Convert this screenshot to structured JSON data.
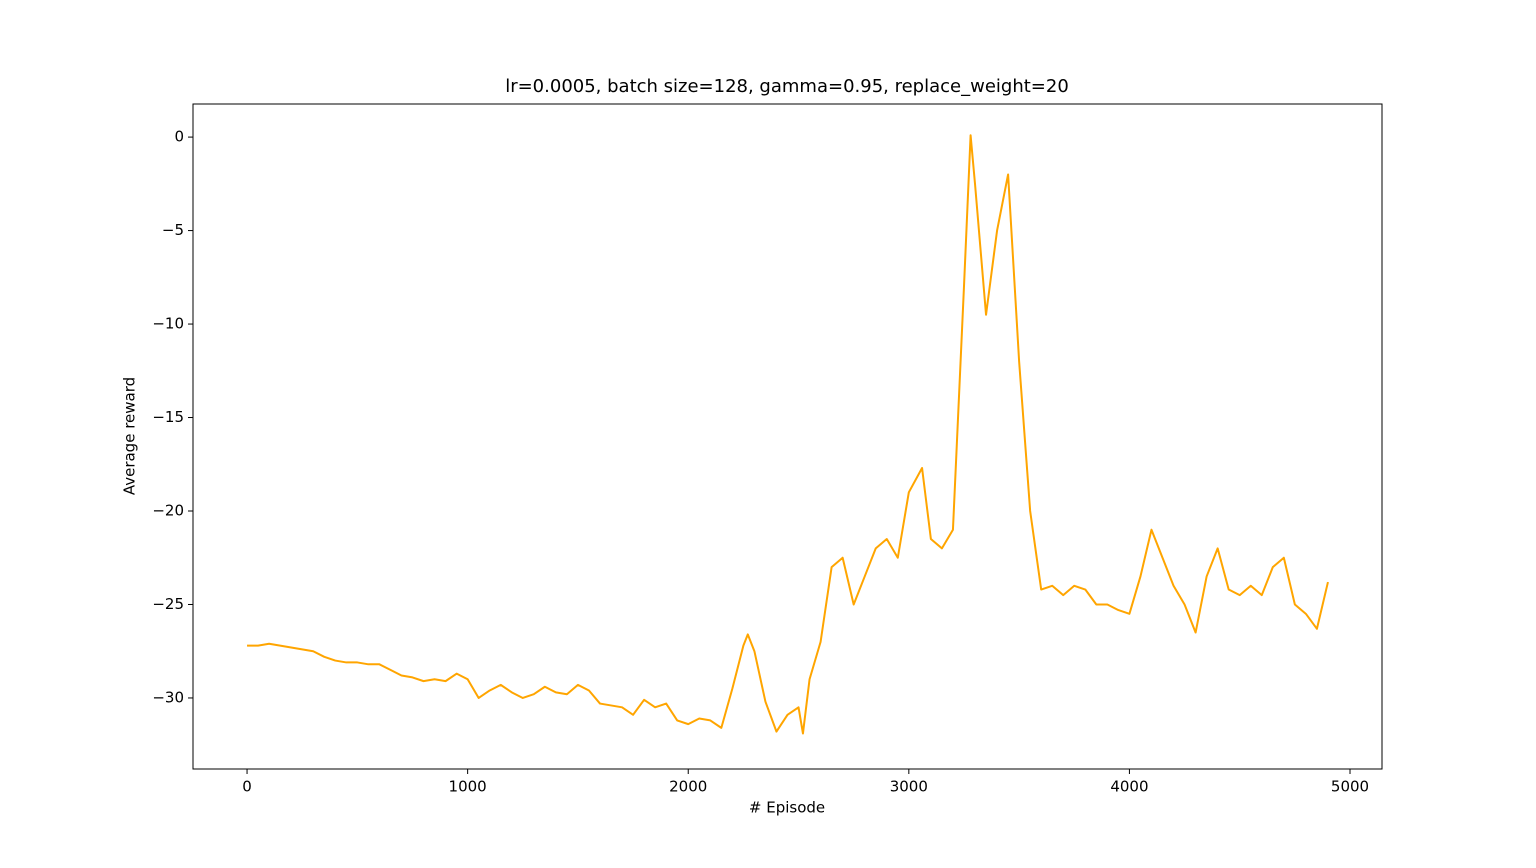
{
  "chart_data": {
    "type": "line",
    "title": "lr=0.0005, batch size=128, gamma=0.95, replace_weight=20",
    "x_label": "# Episode",
    "y_label": "Average reward",
    "x": [
      0,
      50,
      100,
      150,
      200,
      250,
      300,
      350,
      400,
      450,
      500,
      550,
      600,
      650,
      700,
      750,
      800,
      850,
      900,
      950,
      1000,
      1050,
      1100,
      1150,
      1200,
      1250,
      1300,
      1350,
      1400,
      1450,
      1500,
      1550,
      1600,
      1650,
      1700,
      1750,
      1800,
      1850,
      1900,
      1950,
      2000,
      2050,
      2100,
      2150,
      2200,
      2250,
      2270,
      2300,
      2350,
      2400,
      2450,
      2500,
      2520,
      2550,
      2600,
      2650,
      2700,
      2750,
      2800,
      2850,
      2900,
      2950,
      3000,
      3060,
      3100,
      3150,
      3200,
      3250,
      3280,
      3300,
      3350,
      3400,
      3450,
      3500,
      3550,
      3600,
      3650,
      3700,
      3750,
      3800,
      3850,
      3900,
      3950,
      4000,
      4050,
      4100,
      4150,
      4200,
      4250,
      4300,
      4350,
      4400,
      4450,
      4500,
      4550,
      4600,
      4650,
      4700,
      4750,
      4800,
      4850,
      4900
    ],
    "series": [
      {
        "name": "Average reward",
        "color": "#ffa500",
        "values": [
          -27.2,
          -27.2,
          -27.1,
          -27.2,
          -27.3,
          -27.4,
          -27.5,
          -27.8,
          -28.0,
          -28.1,
          -28.1,
          -28.2,
          -28.2,
          -28.5,
          -28.8,
          -28.9,
          -29.1,
          -29.0,
          -29.1,
          -28.7,
          -29.0,
          -30.0,
          -29.6,
          -29.3,
          -29.7,
          -30.0,
          -29.8,
          -29.4,
          -29.7,
          -29.8,
          -29.3,
          -29.6,
          -30.3,
          -30.4,
          -30.5,
          -30.9,
          -30.1,
          -30.5,
          -30.3,
          -31.2,
          -31.4,
          -31.1,
          -31.2,
          -31.6,
          -29.5,
          -27.2,
          -26.6,
          -27.5,
          -30.2,
          -31.8,
          -30.9,
          -30.5,
          -31.9,
          -29.0,
          -27.0,
          -23.0,
          -22.5,
          -25.0,
          -23.5,
          -22.0,
          -21.5,
          -22.5,
          -19.0,
          -17.7,
          -21.5,
          -22.0,
          -21.0,
          -8.0,
          0.1,
          -2.5,
          -9.5,
          -5.0,
          -2.0,
          -12.0,
          -20.0,
          -24.2,
          -24.0,
          -24.5,
          -24.0,
          -24.2,
          -25.0,
          -25.0,
          -25.3,
          -25.5,
          -23.5,
          -21.0,
          -22.5,
          -24.0,
          -25.0,
          -26.5,
          -23.5,
          -22.0,
          -24.2,
          -24.5,
          -24.0,
          -24.5,
          -23.0,
          -22.5,
          -25.0,
          -25.5,
          -26.3,
          -23.8
        ]
      }
    ],
    "xlim": [
      -245,
      5145
    ],
    "xticks": [
      0,
      1000,
      2000,
      3000,
      4000,
      5000
    ],
    "ylim": [
      -33.8,
      1.77
    ],
    "yticks": [
      0,
      -5,
      -10,
      -15,
      -20,
      -25,
      -30
    ],
    "grid": false
  }
}
